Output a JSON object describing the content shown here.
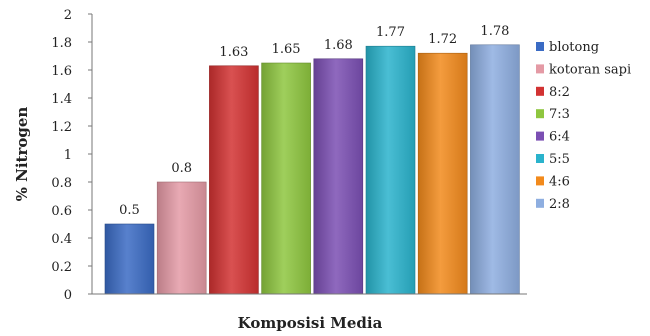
{
  "chart_data": {
    "type": "bar",
    "title": "",
    "xlabel": "Komposisi Media",
    "ylabel": "% Nitrogen",
    "ylim": [
      0,
      2
    ],
    "ytick_step": 0.2,
    "yticks": [
      "0",
      "0.2",
      "0.4",
      "0.6",
      "0.8",
      "1",
      "1.2",
      "1.4",
      "1.6",
      "1.8",
      "2"
    ],
    "grid": false,
    "legend_position": "right",
    "series": [
      {
        "name": "blotong",
        "value": 0.5,
        "label": "0.5",
        "color": "#3a6bc4"
      },
      {
        "name": "kotoran sapi",
        "value": 0.8,
        "label": "0.8",
        "color": "#e49aa5"
      },
      {
        "name": "8:2",
        "value": 1.63,
        "label": "1.63",
        "color": "#d23232"
      },
      {
        "name": "7:3",
        "value": 1.65,
        "label": "1.65",
        "color": "#8ec63f"
      },
      {
        "name": "6:4",
        "value": 1.68,
        "label": "1.68",
        "color": "#7b4fb3"
      },
      {
        "name": "5:5",
        "value": 1.77,
        "label": "1.77",
        "color": "#2ab3cc"
      },
      {
        "name": "4:6",
        "value": 1.72,
        "label": "1.72",
        "color": "#f28a1c"
      },
      {
        "name": "2:8",
        "value": 1.78,
        "label": "1.78",
        "color": "#8eaee0"
      }
    ]
  }
}
